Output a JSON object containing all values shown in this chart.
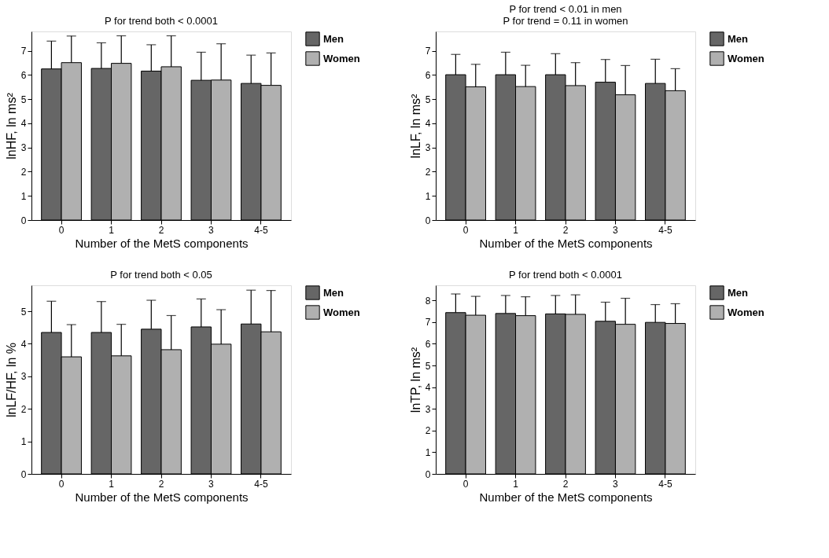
{
  "chart_data": [
    {
      "type": "bar",
      "categories": [
        "0",
        "1",
        "2",
        "3",
        "4-5"
      ],
      "xlabel": "Number of the MetS components",
      "ylabel": "lnHF, ln ms²",
      "annotations": [
        "P for trend both < 0.0001"
      ],
      "ylim": [
        0,
        7.8
      ],
      "yticks": [
        0,
        1,
        2,
        3,
        4,
        5,
        6,
        7
      ],
      "legend": "top right",
      "grid": false,
      "series": [
        {
          "name": "Men",
          "color": "#666666",
          "values": [
            6.25,
            6.27,
            6.16,
            5.78,
            5.65
          ],
          "errors": [
            [
              6.25,
              7.4
            ],
            [
              6.27,
              7.33
            ],
            [
              6.16,
              7.25
            ],
            [
              5.78,
              6.94
            ],
            [
              5.65,
              6.82
            ]
          ]
        },
        {
          "name": "Women",
          "color": "#b0b0b0",
          "values": [
            6.51,
            6.48,
            6.34,
            5.79,
            5.57
          ],
          "errors": [
            [
              6.51,
              7.61
            ],
            [
              6.48,
              7.62
            ],
            [
              6.34,
              7.62
            ],
            [
              5.79,
              7.29
            ],
            [
              5.57,
              6.91
            ]
          ]
        }
      ]
    },
    {
      "type": "bar",
      "categories": [
        "0",
        "1",
        "2",
        "3",
        "4-5"
      ],
      "xlabel": "Number of the MetS components",
      "ylabel": "lnLF, ln ms²",
      "annotations": [
        "P for trend < 0.01 in men",
        "P for trend = 0.11 in women"
      ],
      "ylim": [
        0,
        7.8
      ],
      "yticks": [
        0,
        1,
        2,
        3,
        4,
        5,
        6,
        7
      ],
      "legend": "top right",
      "grid": false,
      "series": [
        {
          "name": "Men",
          "color": "#666666",
          "values": [
            6.01,
            6.01,
            6.01,
            5.7,
            5.65
          ],
          "errors": [
            [
              6.01,
              6.85
            ],
            [
              6.01,
              6.94
            ],
            [
              6.01,
              6.88
            ],
            [
              5.7,
              6.64
            ],
            [
              5.65,
              6.65
            ]
          ]
        },
        {
          "name": "Women",
          "color": "#b0b0b0",
          "values": [
            5.51,
            5.52,
            5.56,
            5.18,
            5.35
          ],
          "errors": [
            [
              5.51,
              6.44
            ],
            [
              5.52,
              6.4
            ],
            [
              5.56,
              6.51
            ],
            [
              5.18,
              6.39
            ],
            [
              5.35,
              6.26
            ]
          ]
        }
      ]
    },
    {
      "type": "bar",
      "categories": [
        "0",
        "1",
        "2",
        "3",
        "4-5"
      ],
      "xlabel": "Number of the MetS components",
      "ylabel": "lnLF/HF, ln %",
      "annotations": [
        "P for trend both < 0.05"
      ],
      "ylim": [
        0,
        5.8
      ],
      "yticks": [
        0,
        1,
        2,
        3,
        4,
        5
      ],
      "legend": "top right",
      "grid": false,
      "series": [
        {
          "name": "Men",
          "color": "#666666",
          "values": [
            4.35,
            4.35,
            4.45,
            4.52,
            4.61
          ],
          "errors": [
            [
              4.35,
              5.31
            ],
            [
              4.35,
              5.3
            ],
            [
              4.45,
              5.34
            ],
            [
              4.52,
              5.38
            ],
            [
              4.61,
              5.65
            ]
          ]
        },
        {
          "name": "Women",
          "color": "#b0b0b0",
          "values": [
            3.6,
            3.63,
            3.82,
            3.99,
            4.37
          ],
          "errors": [
            [
              3.6,
              4.59
            ],
            [
              3.63,
              4.6
            ],
            [
              3.82,
              4.87
            ],
            [
              3.99,
              5.05
            ],
            [
              4.37,
              5.64
            ]
          ]
        }
      ]
    },
    {
      "type": "bar",
      "categories": [
        "0",
        "1",
        "2",
        "3",
        "4-5"
      ],
      "xlabel": "Number of the MetS components",
      "ylabel": "lnTP, ln ms²",
      "annotations": [
        "P for trend both < 0.0001"
      ],
      "ylim": [
        0,
        8.7
      ],
      "yticks": [
        0,
        1,
        2,
        3,
        4,
        5,
        6,
        7,
        8
      ],
      "legend": "top right",
      "grid": false,
      "series": [
        {
          "name": "Men",
          "color": "#666666",
          "values": [
            7.44,
            7.4,
            7.38,
            7.04,
            6.99
          ],
          "errors": [
            [
              7.44,
              8.3
            ],
            [
              7.4,
              8.23
            ],
            [
              7.38,
              8.23
            ],
            [
              7.04,
              7.92
            ],
            [
              6.99,
              7.81
            ]
          ]
        },
        {
          "name": "Women",
          "color": "#b0b0b0",
          "values": [
            7.32,
            7.3,
            7.36,
            6.9,
            6.94
          ],
          "errors": [
            [
              7.32,
              8.19
            ],
            [
              7.3,
              8.17
            ],
            [
              7.36,
              8.26
            ],
            [
              6.9,
              8.1
            ],
            [
              6.94,
              7.85
            ]
          ]
        }
      ]
    }
  ]
}
